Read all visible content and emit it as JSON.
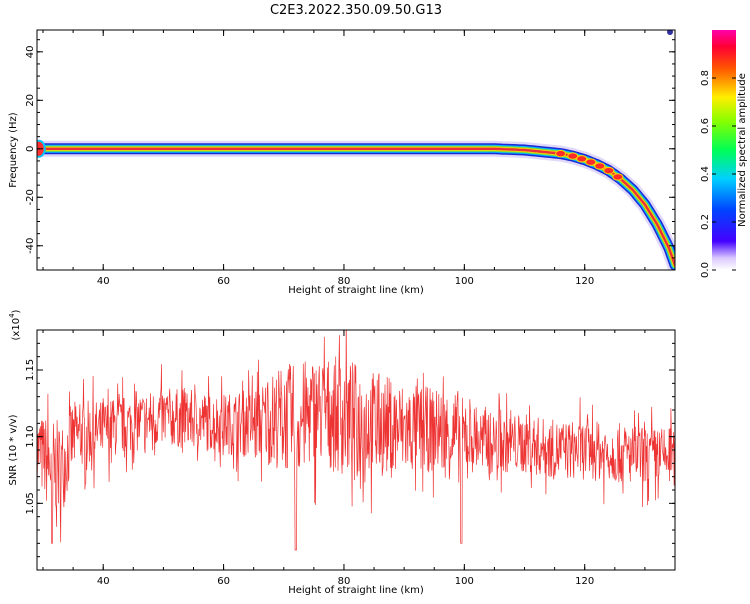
{
  "page": {
    "title": "C2E3.2022.350.09.50.G13"
  },
  "colors": {
    "snr_line": "#ee3333",
    "ridge_core": "#e8313b",
    "ridge_mid": "#7ddc3a",
    "ridge_outer": "#1b2ad6",
    "halo": "#c7b8f5"
  },
  "chart_data": [
    {
      "type": "heatmap",
      "title": "C2E3.2022.350.09.50.G13",
      "xlabel": "Height of straight line (km)",
      "ylabel": "Frequency (Hz)",
      "xlim": [
        29,
        135
      ],
      "ylim": [
        -50,
        49
      ],
      "x_ticks": [
        "40",
        "60",
        "80",
        "100",
        "120"
      ],
      "y_ticks": [
        "40",
        "20",
        "0",
        "-20",
        "-40"
      ],
      "ridge": {
        "description_values": "peak spectral ridge frequency vs height",
        "x": [
          29,
          40,
          60,
          80,
          100,
          105,
          110,
          112,
          114,
          116,
          118,
          120,
          122,
          124,
          126,
          128,
          130,
          132,
          134,
          135
        ],
        "y": [
          0,
          0,
          0,
          0,
          0,
          0,
          -0.5,
          -1,
          -1.5,
          -2,
          -3,
          -4.5,
          -6.5,
          -9,
          -12.5,
          -17,
          -23,
          -31,
          -41,
          -48
        ]
      },
      "colorbar": {
        "label": "Normalized spectral amplitude",
        "range": [
          0,
          1
        ],
        "ticks": [
          "0.0",
          "0.2",
          "0.4",
          "0.6",
          "0.8"
        ]
      }
    },
    {
      "type": "line",
      "xlabel": "Height of straight line (km)",
      "ylabel": "SNR (10 * v/v)",
      "multiplier_label": "(x10",
      "multiplier_exp": "4",
      "multiplier_close": ")",
      "xlim": [
        29,
        135
      ],
      "ylim": [
        1.0,
        1.18
      ],
      "x_ticks": [
        "40",
        "60",
        "80",
        "100",
        "120"
      ],
      "y_ticks": [
        "1.15",
        "1.10",
        "1.05"
      ],
      "series": [
        {
          "values_envelope": {
            "x": [
              29,
              31,
              33,
              35,
              40,
              50,
              60,
              65,
              70,
              72,
              75,
              80,
              85,
              90,
              95,
              99,
              100,
              105,
              110,
              115,
              120,
              125,
              130,
              135
            ],
            "mean": [
              1.09,
              1.08,
              1.075,
              1.1,
              1.105,
              1.115,
              1.11,
              1.11,
              1.115,
              1.11,
              1.12,
              1.115,
              1.11,
              1.105,
              1.105,
              1.1,
              1.1,
              1.095,
              1.095,
              1.09,
              1.09,
              1.088,
              1.085,
              1.085
            ],
            "spread": [
              0.03,
              0.04,
              0.04,
              0.03,
              0.025,
              0.025,
              0.025,
              0.03,
              0.045,
              0.05,
              0.045,
              0.05,
              0.045,
              0.04,
              0.035,
              0.04,
              0.03,
              0.025,
              0.025,
              0.025,
              0.025,
              0.025,
              0.025,
              0.025
            ]
          },
          "dips": {
            "x": [
              31.5,
              72,
              99.5
            ],
            "y": [
              1.02,
              1.015,
              1.02
            ]
          }
        }
      ]
    }
  ]
}
